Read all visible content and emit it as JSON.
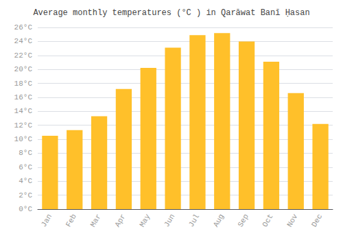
{
  "chart_data": {
    "type": "bar",
    "title": "Average monthly temperatures (°C ) in Qarāwat Banī Ḥasan",
    "categories": [
      "Jan",
      "Feb",
      "Mar",
      "Apr",
      "May",
      "Jun",
      "Jul",
      "Aug",
      "Sep",
      "Oct",
      "Nov",
      "Dec"
    ],
    "values": [
      10.5,
      11.3,
      13.3,
      17.2,
      20.2,
      23.1,
      24.9,
      25.2,
      24.0,
      21.1,
      16.6,
      12.2
    ],
    "color": "#FFC02A",
    "ylim": [
      0,
      26
    ],
    "yticks": [
      {
        "value": 0,
        "label": "0°C"
      },
      {
        "value": 2,
        "label": "2°C"
      },
      {
        "value": 4,
        "label": "4°C"
      },
      {
        "value": 6,
        "label": "6°C"
      },
      {
        "value": 8,
        "label": "8°C"
      },
      {
        "value": 10,
        "label": "10°C"
      },
      {
        "value": 12,
        "label": "12°C"
      },
      {
        "value": 14,
        "label": "14°C"
      },
      {
        "value": 16,
        "label": "16°C"
      },
      {
        "value": 18,
        "label": "18°C"
      },
      {
        "value": 20,
        "label": "20°C"
      },
      {
        "value": 22,
        "label": "22°C"
      },
      {
        "value": 24,
        "label": "24°C"
      },
      {
        "value": 26,
        "label": "26°C"
      }
    ],
    "grid": true
  }
}
